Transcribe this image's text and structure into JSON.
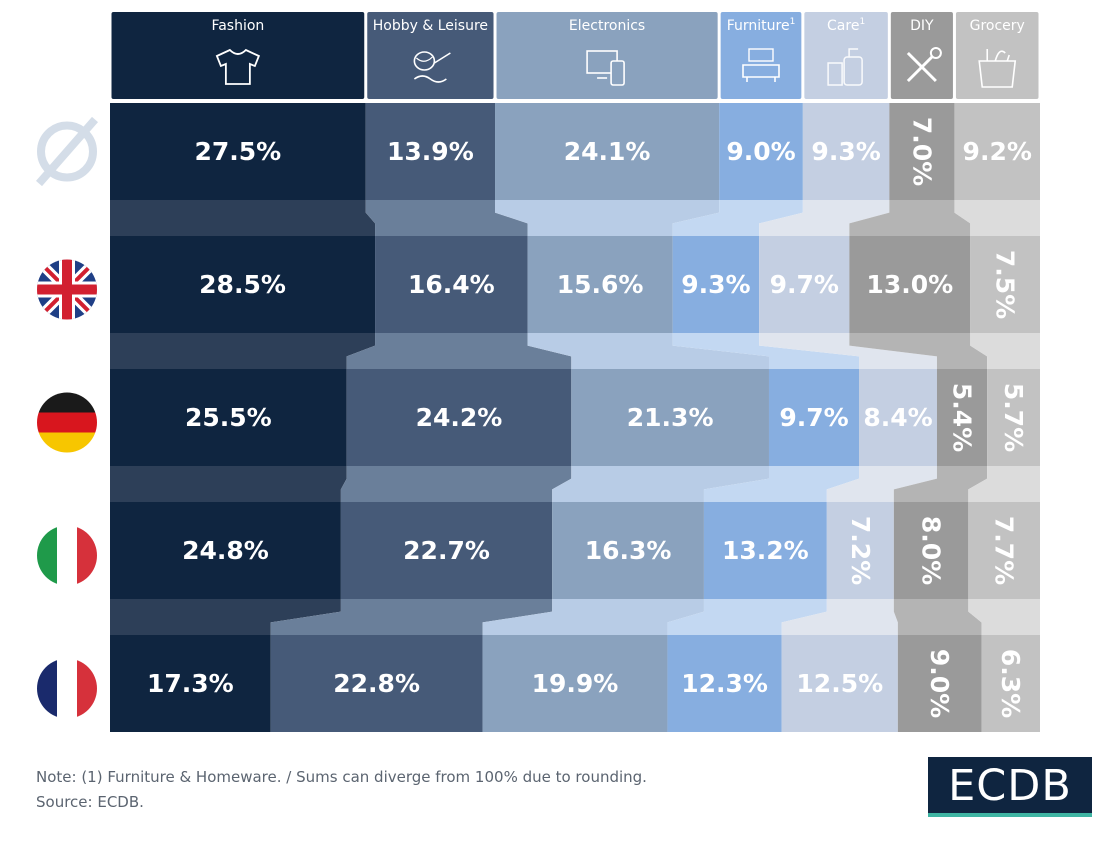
{
  "chart_data": {
    "type": "stacked-horizontal-bar",
    "title": "",
    "categories": [
      "Fashion",
      "Hobby & Leisure",
      "Electronics",
      "Furniture",
      "Care",
      "DIY",
      "Grocery"
    ],
    "category_superscripts": [
      "",
      "",
      "",
      "1",
      "1",
      "",
      ""
    ],
    "category_icons": [
      "tshirt-icon",
      "yarn-icon",
      "devices-icon",
      "sofa-icon",
      "care-bottles-icon",
      "tools-icon",
      "grocery-bag-icon"
    ],
    "colors": [
      "#0f2540",
      "#465a78",
      "#8aa2be",
      "#87aee0",
      "#c4cfe2",
      "#9a9a9a",
      "#c2c2c2"
    ],
    "connector_colors": [
      "#2d3f58",
      "#6a7f9a",
      "#b8cce6",
      "#c3d8f2",
      "#e0e5ee",
      "#b4b4b4",
      "#dcdcdc"
    ],
    "rows": [
      {
        "name": "Average",
        "icon": "average-symbol-icon",
        "values": [
          27.5,
          13.9,
          24.1,
          9.0,
          9.3,
          7.0,
          9.2
        ],
        "labels": [
          "27.5%",
          "13.9%",
          "24.1%",
          "9.0%",
          "9.3%",
          "7.0%",
          "9.2%"
        ]
      },
      {
        "name": "United Kingdom",
        "icon": "uk-flag-icon",
        "values": [
          28.5,
          16.4,
          15.6,
          9.3,
          9.7,
          13.0,
          7.5
        ],
        "labels": [
          "28.5%",
          "16.4%",
          "15.6%",
          "9.3%",
          "9.7%",
          "13.0%",
          "7.5%"
        ]
      },
      {
        "name": "Germany",
        "icon": "germany-flag-icon",
        "values": [
          25.5,
          24.2,
          21.3,
          9.7,
          8.4,
          5.4,
          5.7
        ],
        "labels": [
          "25.5%",
          "24.2%",
          "21.3%",
          "9.7%",
          "8.4%",
          "5.4%",
          "5.7%"
        ]
      },
      {
        "name": "Italy",
        "icon": "italy-flag-icon",
        "values": [
          24.8,
          22.7,
          16.3,
          13.2,
          7.2,
          8.0,
          7.7
        ],
        "labels": [
          "24.8%",
          "22.7%",
          "16.3%",
          "13.2%",
          "7.2%",
          "8.0%",
          "7.7%"
        ]
      },
      {
        "name": "France",
        "icon": "france-flag-icon",
        "values": [
          17.3,
          22.8,
          19.9,
          12.3,
          12.5,
          9.0,
          6.3
        ],
        "labels": [
          "17.3%",
          "22.8%",
          "19.9%",
          "12.3%",
          "12.5%",
          "9.0%",
          "6.3%"
        ]
      }
    ],
    "rotated_labels": [
      [
        false,
        false,
        false,
        false,
        false,
        true,
        false
      ],
      [
        false,
        false,
        false,
        false,
        false,
        false,
        true
      ],
      [
        false,
        false,
        false,
        false,
        false,
        true,
        true
      ],
      [
        false,
        false,
        false,
        false,
        true,
        true,
        true
      ],
      [
        false,
        false,
        false,
        false,
        false,
        true,
        true
      ]
    ],
    "header_text_colors": [
      "#ffffff",
      "#ffffff",
      "#ffffff",
      "#ffffff",
      "#ffffff",
      "#ffffff",
      "#ffffff"
    ],
    "label_colors": [
      "#ffffff",
      "#ffffff",
      "#ffffff",
      "#ffffff",
      "#ffffff",
      "#ffffff",
      "#ffffff"
    ],
    "xlim": [
      0,
      100
    ]
  },
  "footer": {
    "note": "Note: (1) Furniture & Homeware. / Sums can diverge from 100% due to rounding.",
    "source": "Source: ECDB."
  },
  "logo": {
    "text": "ECDB"
  }
}
